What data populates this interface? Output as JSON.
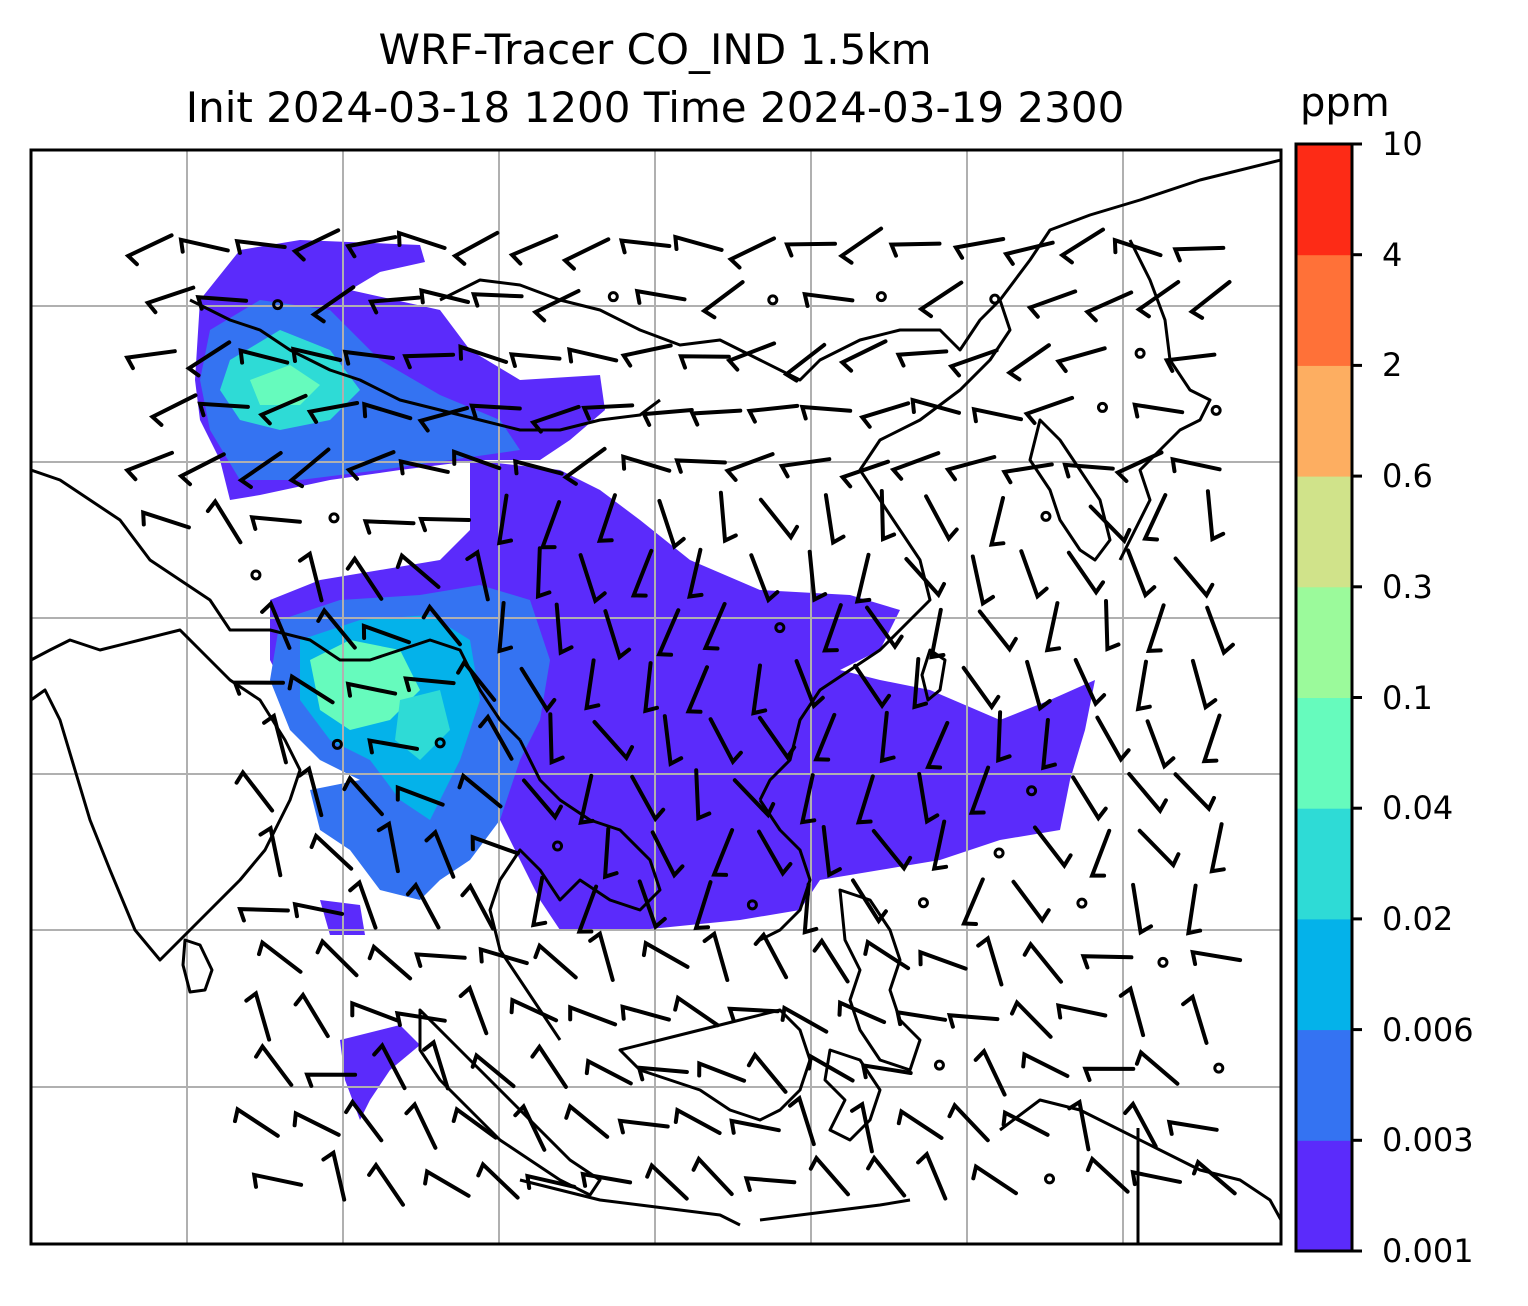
{
  "title": {
    "line1": "WRF-Tracer CO_IND 1.5km",
    "line2": "Init 2024-03-18 1200 Time 2024-03-19 2300"
  },
  "colorbar": {
    "unit": "ppm",
    "levels": [
      "0.001",
      "0.003",
      "0.006",
      "0.02",
      "0.04",
      "0.1",
      "0.3",
      "0.6",
      "2",
      "4",
      "10"
    ],
    "colors": [
      "#5b2bfb",
      "#3473f2",
      "#04b2ea",
      "#2edbd6",
      "#66fbbd",
      "#9bfa9b",
      "#d0e38a",
      "#fdae61",
      "#ff7138",
      "#fd2b16"
    ]
  },
  "map": {
    "coastline_color": "#000000",
    "gridline_color": "#b0b0b0",
    "wind_barb_color": "#000000"
  }
}
